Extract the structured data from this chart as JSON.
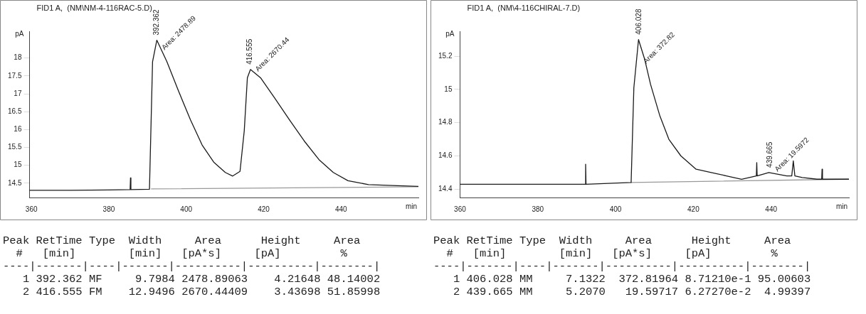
{
  "chart_data": [
    {
      "type": "line",
      "title": "FID1 A,  (NM\\NM-4-116RAC-5.D)",
      "xlabel": "min",
      "ylabel": "pA",
      "xlim": [
        359.5,
        460
      ],
      "xticks": [
        360,
        380,
        400,
        420,
        440
      ],
      "ylim": [
        14.1,
        18.75
      ],
      "yticks": [
        14.5,
        15,
        15.5,
        16,
        16.5,
        17,
        17.5,
        18
      ],
      "grid": false,
      "legend": false,
      "marker": "none",
      "line_style": "solid",
      "series": [
        {
          "color": "#1a1a1a",
          "x": [
            359.5,
            370,
            380,
            385.5,
            385.6,
            385.7,
            390.5,
            391.3,
            392.4,
            395,
            398,
            401.1,
            404.1,
            407.1,
            410.1,
            412,
            413.9,
            415,
            415.8,
            416.6,
            419.2,
            423,
            426.7,
            430.5,
            434.3,
            438,
            441.8,
            447.1,
            454.6,
            460
          ],
          "values": [
            14.3,
            14.3,
            14.31,
            14.32,
            14.65,
            14.32,
            14.33,
            17.9,
            18.5,
            17.9,
            17.08,
            16.27,
            15.57,
            15.09,
            14.8,
            14.7,
            14.83,
            15.97,
            17.45,
            17.68,
            17.45,
            16.86,
            16.27,
            15.68,
            15.16,
            14.8,
            14.57,
            14.46,
            14.43,
            14.41
          ]
        },
        {
          "color": "#999999",
          "x": [
            391,
            460
          ],
          "values": [
            14.34,
            14.4
          ]
        }
      ],
      "annotations": [
        {
          "text": "392.362",
          "x": 392.362,
          "y": 18.5
        },
        {
          "text": "Area: 2478.89",
          "x": 393.5,
          "y": 18.2
        },
        {
          "text": "416.555",
          "x": 416.555,
          "y": 17.68
        },
        {
          "text": "Area: 2670.44",
          "x": 417.7,
          "y": 17.6
        },
        "Peak RetTime Type  Width     Area      Height     Area  ",
        "  #   [min]        [min]   [pA*s]     [pA]         %    ",
        "----|-------|----|-------|----------|----------|--------|",
        "   1 392.362 MF     9.7984 2478.89063    4.21648 48.14002",
        "   2 416.555 FM    12.9496 2670.44409    3.43698 51.85998"
      ]
    },
    {
      "type": "line",
      "title": "FID1 A,  (NM\\4-116CHIRAL-7.D)",
      "xlabel": "min",
      "ylabel": "pA",
      "xlim": [
        360,
        460
      ],
      "xticks": [
        360,
        380,
        400,
        420,
        440
      ],
      "ylim": [
        14.35,
        15.35
      ],
      "yticks": [
        14.4,
        14.6,
        14.8,
        15,
        15.2
      ],
      "grid": false,
      "legend": false,
      "marker": "none",
      "line_style": "solid",
      "series": [
        {
          "color": "#1a1a1a",
          "x": [
            360,
            370,
            380,
            392.2,
            392.3,
            392.4,
            404,
            404.7,
            405.9,
            407.5,
            409,
            411.4,
            413.7,
            416.8,
            420.7,
            424.6,
            428.5,
            432.4,
            436.2,
            436.3,
            436.4,
            439.4,
            444,
            445.3,
            445.7,
            446.1,
            448,
            451.8,
            453,
            453.1,
            453.2,
            460
          ],
          "values": [
            14.43,
            14.43,
            14.43,
            14.43,
            14.55,
            14.43,
            14.44,
            15.01,
            15.3,
            15.18,
            15.03,
            14.84,
            14.7,
            14.6,
            14.52,
            14.5,
            14.48,
            14.46,
            14.48,
            14.56,
            14.48,
            14.5,
            14.48,
            14.48,
            14.57,
            14.48,
            14.47,
            14.46,
            14.46,
            14.52,
            14.46,
            14.46
          ]
        },
        {
          "color": "#999999",
          "x": [
            404,
            460
          ],
          "values": [
            14.44,
            14.46
          ]
        }
      ],
      "annotations": [
        {
          "text": "406.028",
          "x": 406.028,
          "y": 15.3
        },
        {
          "text": "Area: 372.82",
          "x": 407,
          "y": 15.15
        },
        {
          "text": "439.665",
          "x": 439.665,
          "y": 14.5
        },
        {
          "text": "Area: 19.5972",
          "x": 440.8,
          "y": 14.5
        },
        "Peak RetTime Type  Width     Area      Height     Area  ",
        "  #   [min]        [min]   [pA*s]     [pA]         %    ",
        "----|-------|----|-------|----------|----------|--------|",
        "   1 406.028 MM     7.1322  372.81964 8.71210e-1 95.00603",
        "   2 439.665 MM     5.2070   19.59717 6.27270e-2  4.99397"
      ]
    }
  ]
}
